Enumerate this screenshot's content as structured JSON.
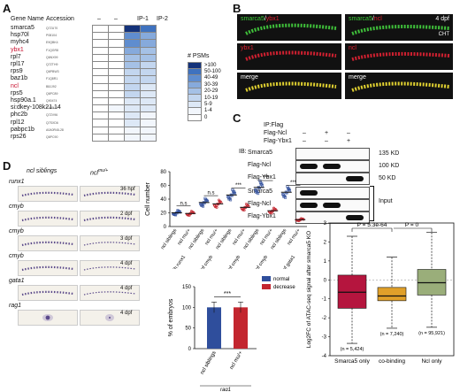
{
  "panels": {
    "A": "A",
    "B": "B",
    "C": "C",
    "D": "D",
    "E": "E"
  },
  "panelA": {
    "header": {
      "gene": "Gene Name",
      "acc": "Accession",
      "c1": "–",
      "c2": "–",
      "ip1": "IP-1",
      "ip2": "IP-2"
    },
    "genes": [
      {
        "name": "smarca5",
        "acc": "Q7ZU70",
        "red": false,
        "v": [
          0,
          0,
          8,
          7
        ]
      },
      {
        "name": "hsp70l",
        "acc": "P08104",
        "red": false,
        "v": [
          0,
          0,
          6,
          5
        ]
      },
      {
        "name": "myhc4",
        "acc": "E9QBK4",
        "red": false,
        "v": [
          0,
          0,
          6,
          5
        ]
      },
      {
        "name": "ybx1",
        "acc": "F1QGR8",
        "red": true,
        "v": [
          0,
          0,
          5,
          4
        ]
      },
      {
        "name": "rpl7",
        "acc": "Q6NX99",
        "red": false,
        "v": [
          0,
          0,
          4,
          4
        ]
      },
      {
        "name": "rpl17",
        "acc": "Q7ZTH9",
        "red": false,
        "v": [
          0,
          0,
          4,
          3
        ]
      },
      {
        "name": "rps9",
        "acc": "Q6PBW3",
        "red": false,
        "v": [
          0,
          0,
          3,
          3
        ]
      },
      {
        "name": "baz1b",
        "acc": "F1Q8R1",
        "red": false,
        "v": [
          0,
          0,
          3,
          3
        ]
      },
      {
        "name": "ncl",
        "acc": "B8JJ92",
        "red": true,
        "v": [
          0,
          0,
          3,
          2
        ]
      },
      {
        "name": "rps5",
        "acc": "Q6PC89",
        "red": false,
        "v": [
          0,
          0,
          3,
          2
        ]
      },
      {
        "name": "hsp90a.1",
        "acc": "Q90474",
        "red": false,
        "v": [
          0,
          0,
          2,
          2
        ]
      },
      {
        "name": "si:dkey-108k21.14",
        "acc": "F1R9L9",
        "red": false,
        "v": [
          0,
          1,
          2,
          2
        ]
      },
      {
        "name": "phc2b",
        "acc": "Q7ZV96",
        "red": false,
        "v": [
          0,
          0,
          2,
          1
        ]
      },
      {
        "name": "rpl12",
        "acc": "Q7SXD6",
        "red": false,
        "v": [
          0,
          0,
          2,
          1
        ]
      },
      {
        "name": "pabpc1b",
        "acc": "A0A0R4IL28",
        "red": false,
        "v": [
          0,
          0,
          1,
          1
        ]
      },
      {
        "name": "rps26",
        "acc": "Q6PC90",
        "red": false,
        "v": [
          0,
          0,
          1,
          1
        ]
      }
    ],
    "legend_title": "# PSMs",
    "legend": [
      ">100",
      "50-100",
      "40-49",
      "30-39",
      "20-29",
      "10-19",
      "5-9",
      "1-4",
      "0"
    ],
    "colors": [
      "#ffffff",
      "#f2f6fc",
      "#dde8f6",
      "#c3d6ef",
      "#a5c1e6",
      "#86aadc",
      "#5f8dcf",
      "#3f72bf",
      "#14327a"
    ]
  },
  "panelB": {
    "left_label1": "smarca5",
    "left_sep": "/",
    "left_label2": "ybx1",
    "right_label1": "smarca5",
    "right_sep": "/",
    "right_label2": "ncl",
    "stage": "4 dpf",
    "cht": "CHT",
    "row2_left": "ybx1",
    "row2_right": "ncl",
    "merge": "merge"
  },
  "panelC": {
    "ip_flag": "IP:Flag",
    "flag_ncl": "Flag-Ncl",
    "flag_ybx1": "Flag-Ybx1",
    "ncl_marks": [
      "–",
      "+",
      "–"
    ],
    "ybx1_marks": [
      "–",
      "–",
      "+"
    ],
    "ib": "IB:",
    "rows": [
      "Smarca5",
      "Flag-Ncl",
      "Flag-Ybx1",
      "Smarca5",
      "Flag-Ncl",
      "Flag-Ybx1"
    ],
    "kd": [
      "135 KD",
      "100 KD",
      "50 KD"
    ],
    "input": "Input"
  },
  "panelD": {
    "col1": "ncl siblings",
    "col2": "ncl",
    "col2_sup": "mu/+",
    "probes": [
      "runx1",
      "cmyb",
      "cmyb",
      "cmyb",
      "gata1",
      "rag1"
    ],
    "stages": [
      "36 hpf",
      "2 dpf",
      "3 dpf",
      "4 dpf",
      "4 dpf",
      "4 dpf"
    ],
    "scatter_ylabel": "Cell number",
    "bar_ylabel": "% of embryos",
    "bar_legend": [
      "normal",
      "decrease"
    ],
    "bar_xlabels": [
      "ncl siblings",
      "ncl"
    ],
    "bar_xsup": "mu/+",
    "bar_group": "rag1",
    "sig": [
      "n.s",
      "n.s",
      "***",
      "***",
      "***",
      "***"
    ]
  },
  "chart_data": [
    {
      "type": "scatter",
      "ylabel": "Cell number",
      "ylim": [
        0,
        80
      ],
      "yticks": [
        0,
        20,
        40,
        60,
        80
      ],
      "groups": [
        "36h runx1",
        "2 dpf cmyb",
        "3 dpf cmyb",
        "4 dpf cmyb",
        "4 dpf gata1"
      ],
      "categories": [
        "ncl siblings",
        "ncl mu/+",
        "ncl siblings",
        "ncl mu/+",
        "ncl siblings",
        "ncl mu/+",
        "ncl siblings",
        "ncl mu/+",
        "ncl siblings",
        "ncl mu/+"
      ],
      "series": [
        {
          "name": "ncl siblings",
          "means": [
            20,
            35,
            46,
            57,
            50
          ]
        },
        {
          "name": "ncl mu/+",
          "means": [
            19,
            33,
            28,
            23,
            10
          ]
        }
      ],
      "significance": [
        "n.s",
        "n.s",
        "***",
        "***",
        "***"
      ]
    },
    {
      "type": "bar",
      "ylabel": "% of embryos",
      "ylim": [
        0,
        150
      ],
      "yticks": [
        0,
        50,
        100,
        150
      ],
      "categories": [
        "ncl siblings",
        "ncl mu/+"
      ],
      "series": [
        {
          "name": "normal",
          "values": [
            100,
            0
          ]
        },
        {
          "name": "decrease",
          "values": [
            0,
            100
          ]
        }
      ],
      "colors": [
        "#2f4e9c",
        "#c3262f"
      ],
      "significance": "***"
    },
    {
      "type": "box",
      "ylabel": "Log2FC of ATAC-seq signal after smarca5 KO",
      "ylim": [
        -4,
        3
      ],
      "yticks": [
        -4,
        -3,
        -2,
        -1,
        0,
        1,
        2,
        3
      ],
      "categories": [
        "Smarca5 only",
        "co-binding",
        "Ncl only"
      ],
      "n": [
        "(n = 5,424)",
        "(n = 7,240)",
        "(n = 95,921)"
      ],
      "medians": [
        -0.65,
        -0.85,
        -0.15
      ],
      "q1": [
        -1.5,
        -1.1,
        -0.8
      ],
      "q3": [
        0.25,
        -0.4,
        0.55
      ],
      "whisker_low": [
        -3.35,
        -2.55,
        -2.5
      ],
      "whisker_high": [
        2.3,
        1.2,
        2.5
      ],
      "colors": [
        "#b5153e",
        "#e0a02a",
        "#9aae7a"
      ],
      "pvalues": [
        "P = 5.3e-64",
        "P = 0"
      ]
    }
  ]
}
